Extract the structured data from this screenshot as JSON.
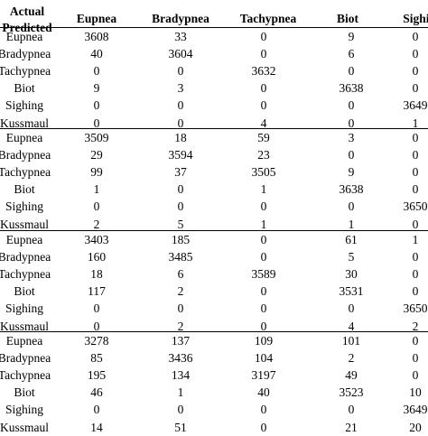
{
  "header": {
    "corner_top": "Actual",
    "corner_bottom": "Predicted",
    "columns": [
      "Eupnea",
      "Bradypnea",
      "Tachypnea",
      "Biot",
      "Sighing"
    ]
  },
  "blocks": [
    {
      "rows": [
        {
          "label": "Eupnea",
          "values": [
            "3608",
            "33",
            "0",
            "9",
            "0"
          ]
        },
        {
          "label": "Bradypnea",
          "values": [
            "40",
            "3604",
            "0",
            "6",
            "0"
          ]
        },
        {
          "label": "Tachypnea",
          "values": [
            "0",
            "0",
            "3632",
            "0",
            "0"
          ]
        },
        {
          "label": "Biot",
          "values": [
            "9",
            "3",
            "0",
            "3638",
            "0"
          ]
        },
        {
          "label": "Sighing",
          "values": [
            "0",
            "0",
            "0",
            "0",
            "3649"
          ]
        },
        {
          "label": "Kussmaul",
          "values": [
            "0",
            "0",
            "4",
            "0",
            "1"
          ]
        }
      ]
    },
    {
      "rows": [
        {
          "label": "Eupnea",
          "values": [
            "3509",
            "18",
            "59",
            "3",
            "0"
          ]
        },
        {
          "label": "Bradypnea",
          "values": [
            "29",
            "3594",
            "23",
            "0",
            "0"
          ]
        },
        {
          "label": "Tachypnea",
          "values": [
            "99",
            "37",
            "3505",
            "9",
            "0"
          ]
        },
        {
          "label": "Biot",
          "values": [
            "1",
            "0",
            "1",
            "3638",
            "0"
          ]
        },
        {
          "label": "Sighing",
          "values": [
            "0",
            "0",
            "0",
            "0",
            "3650"
          ]
        },
        {
          "label": "Kussmaul",
          "values": [
            "2",
            "5",
            "1",
            "1",
            "0"
          ]
        }
      ]
    },
    {
      "rows": [
        {
          "label": "Eupnea",
          "values": [
            "3403",
            "185",
            "0",
            "61",
            "1"
          ]
        },
        {
          "label": "Bradypnea",
          "values": [
            "160",
            "3485",
            "0",
            "5",
            "0"
          ]
        },
        {
          "label": "Tachypnea",
          "values": [
            "18",
            "6",
            "3589",
            "30",
            "0"
          ]
        },
        {
          "label": "Biot",
          "values": [
            "117",
            "2",
            "0",
            "3531",
            "0"
          ]
        },
        {
          "label": "Sighing",
          "values": [
            "0",
            "0",
            "0",
            "0",
            "3650"
          ]
        },
        {
          "label": "Kussmaul",
          "values": [
            "0",
            "2",
            "0",
            "4",
            "2"
          ]
        }
      ]
    },
    {
      "rows": [
        {
          "label": "Eupnea",
          "values": [
            "3278",
            "137",
            "109",
            "101",
            "0"
          ]
        },
        {
          "label": "Bradypnea",
          "values": [
            "85",
            "3436",
            "104",
            "2",
            "0"
          ]
        },
        {
          "label": "Tachypnea",
          "values": [
            "195",
            "134",
            "3197",
            "49",
            "0"
          ]
        },
        {
          "label": "Biot",
          "values": [
            "46",
            "1",
            "40",
            "3523",
            "10"
          ]
        },
        {
          "label": "Sighing",
          "values": [
            "0",
            "0",
            "0",
            "0",
            "3649"
          ]
        },
        {
          "label": "Kussmaul",
          "values": [
            "14",
            "51",
            "0",
            "21",
            "20"
          ]
        }
      ]
    }
  ]
}
